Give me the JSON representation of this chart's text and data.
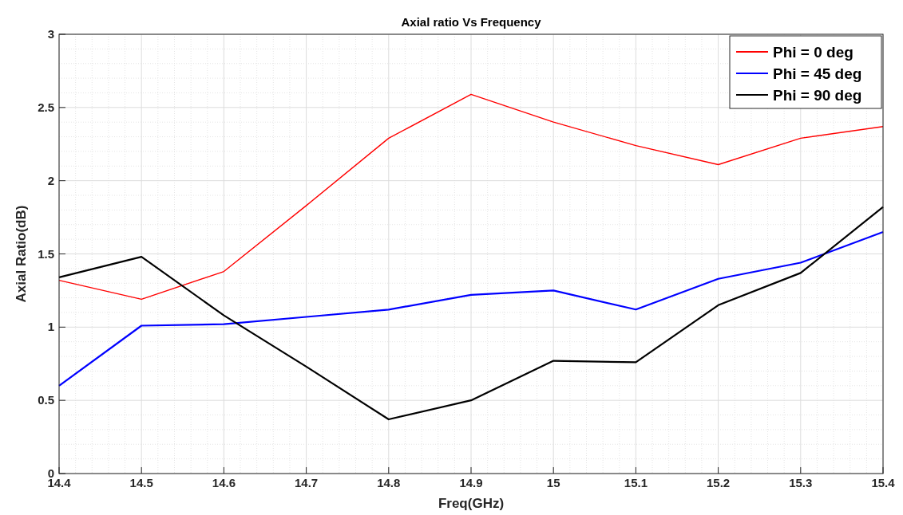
{
  "chart_data": {
    "type": "line",
    "title": "Axial ratio Vs Frequency",
    "xlabel": "Freq(GHz)",
    "ylabel": "Axial Ratio(dB)",
    "x": [
      14.4,
      14.5,
      14.6,
      14.7,
      14.8,
      14.9,
      15,
      15.1,
      15.2,
      15.3,
      15.4
    ],
    "series": [
      {
        "name": "Phi = 0 deg",
        "color": "#ff0000",
        "values": [
          1.32,
          1.19,
          1.38,
          1.83,
          2.29,
          2.59,
          2.4,
          2.24,
          2.11,
          2.29,
          2.37
        ]
      },
      {
        "name": "Phi = 45 deg",
        "color": "#0000ff",
        "values": [
          0.6,
          1.01,
          1.02,
          1.07,
          1.12,
          1.22,
          1.25,
          1.12,
          1.33,
          1.44,
          1.65
        ]
      },
      {
        "name": "Phi = 90 deg",
        "color": "#000000",
        "values": [
          1.34,
          1.48,
          1.08,
          0.73,
          0.37,
          0.5,
          0.77,
          0.76,
          1.15,
          1.37,
          1.82
        ]
      }
    ],
    "xlim": [
      14.4,
      15.4
    ],
    "xticks": [
      14.4,
      14.5,
      14.6,
      14.7,
      14.8,
      14.9,
      15,
      15.1,
      15.2,
      15.3,
      15.4
    ],
    "ylim": [
      0,
      3
    ],
    "yticks": [
      0,
      0.5,
      1,
      1.5,
      2,
      2.5,
      3
    ],
    "grid": true,
    "legend": "top right"
  }
}
